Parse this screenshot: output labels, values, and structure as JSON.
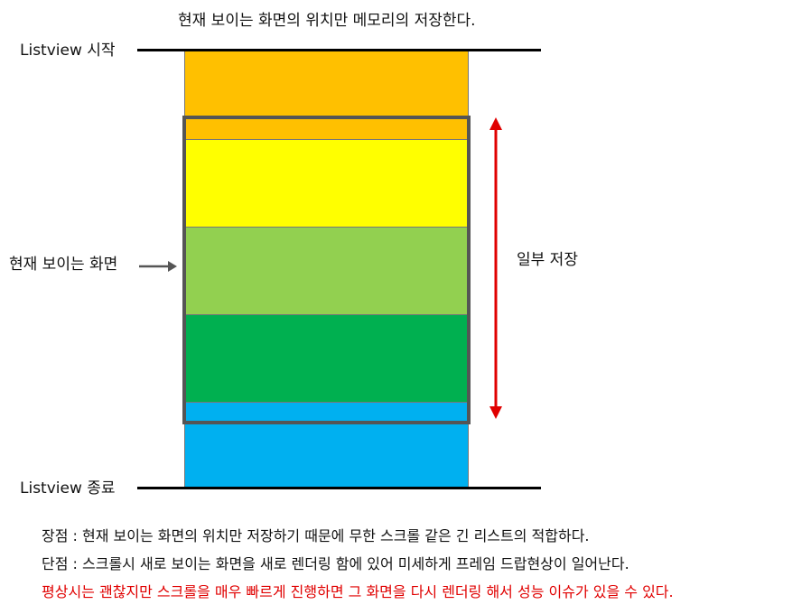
{
  "diagram": {
    "title": "현재 보이는 화면의 위치만 메모리의 저장한다.",
    "start_label": "Listview 시작",
    "end_label": "Listview 종료",
    "visible_label": "현재 보이는 화면",
    "partial_label": "일부 저장",
    "colors": {
      "orange": "#FFC000",
      "yellow": "#FFFF00",
      "light_green": "#92D050",
      "green": "#00B050",
      "blue": "#00B0F0",
      "viewport_border": "#555555",
      "arrow_red": "#E00000"
    }
  },
  "notes": {
    "pro": "장점 : 현재 보이는 화면의 위치만 저장하기 때문에 무한 스크롤 같은 긴 리스트의 적합하다.",
    "con": "단점 : 스크롤시 새로 보이는 화면을 새로 렌더링 함에 있어 미세하게 프레임 드랍현상이 일어난다.",
    "warning": "평상시는 괜찮지만 스크롤을 매우 빠르게 진행하면 그 화면을 다시 렌더링 해서 성능 이슈가 있을 수 있다.",
    "warning_color": "#E00000"
  }
}
